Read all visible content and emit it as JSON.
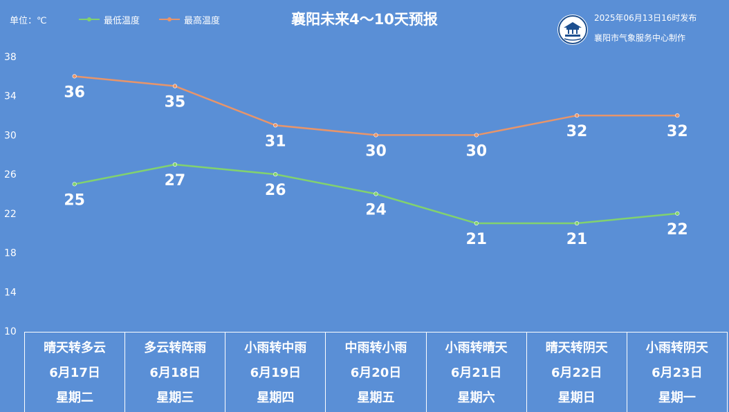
{
  "header": {
    "unit_label": "单位：℃",
    "title": "襄阳未来4～10天预报",
    "publish_time": "2025年06月13日16时发布",
    "producer": "襄阳市气象服务中心制作",
    "logo_icon": "xiangyang-meteorology-logo-icon"
  },
  "legend": {
    "low_label": "最低温度",
    "high_label": "最高温度"
  },
  "colors": {
    "background": "#5a8fd6",
    "low_series": "#82d26e",
    "high_series": "#e8956a",
    "text": "#ffffff"
  },
  "chart_data": {
    "type": "line",
    "title": "襄阳未来4～10天预报",
    "ylabel": "单位：℃",
    "ylim": [
      10,
      38
    ],
    "yticks": [
      10,
      14,
      18,
      22,
      26,
      30,
      34,
      38
    ],
    "grid": false,
    "legend_position": "top-left",
    "categories": [
      "6月17日",
      "6月18日",
      "6月19日",
      "6月20日",
      "6月21日",
      "6月22日",
      "6月23日"
    ],
    "series": [
      {
        "name": "最低温度",
        "values": [
          25,
          27,
          26,
          24,
          21,
          21,
          22
        ]
      },
      {
        "name": "最高温度",
        "values": [
          36,
          35,
          31,
          30,
          30,
          32,
          32
        ]
      }
    ]
  },
  "forecast": [
    {
      "weather": "晴天转多云",
      "date": "6月17日",
      "weekday": "星期二"
    },
    {
      "weather": "多云转阵雨",
      "date": "6月18日",
      "weekday": "星期三"
    },
    {
      "weather": "小雨转中雨",
      "date": "6月19日",
      "weekday": "星期四"
    },
    {
      "weather": "中雨转小雨",
      "date": "6月20日",
      "weekday": "星期五"
    },
    {
      "weather": "小雨转晴天",
      "date": "6月21日",
      "weekday": "星期六"
    },
    {
      "weather": "晴天转阴天",
      "date": "6月22日",
      "weekday": "星期日"
    },
    {
      "weather": "小雨转阴天",
      "date": "6月23日",
      "weekday": "星期一"
    }
  ]
}
